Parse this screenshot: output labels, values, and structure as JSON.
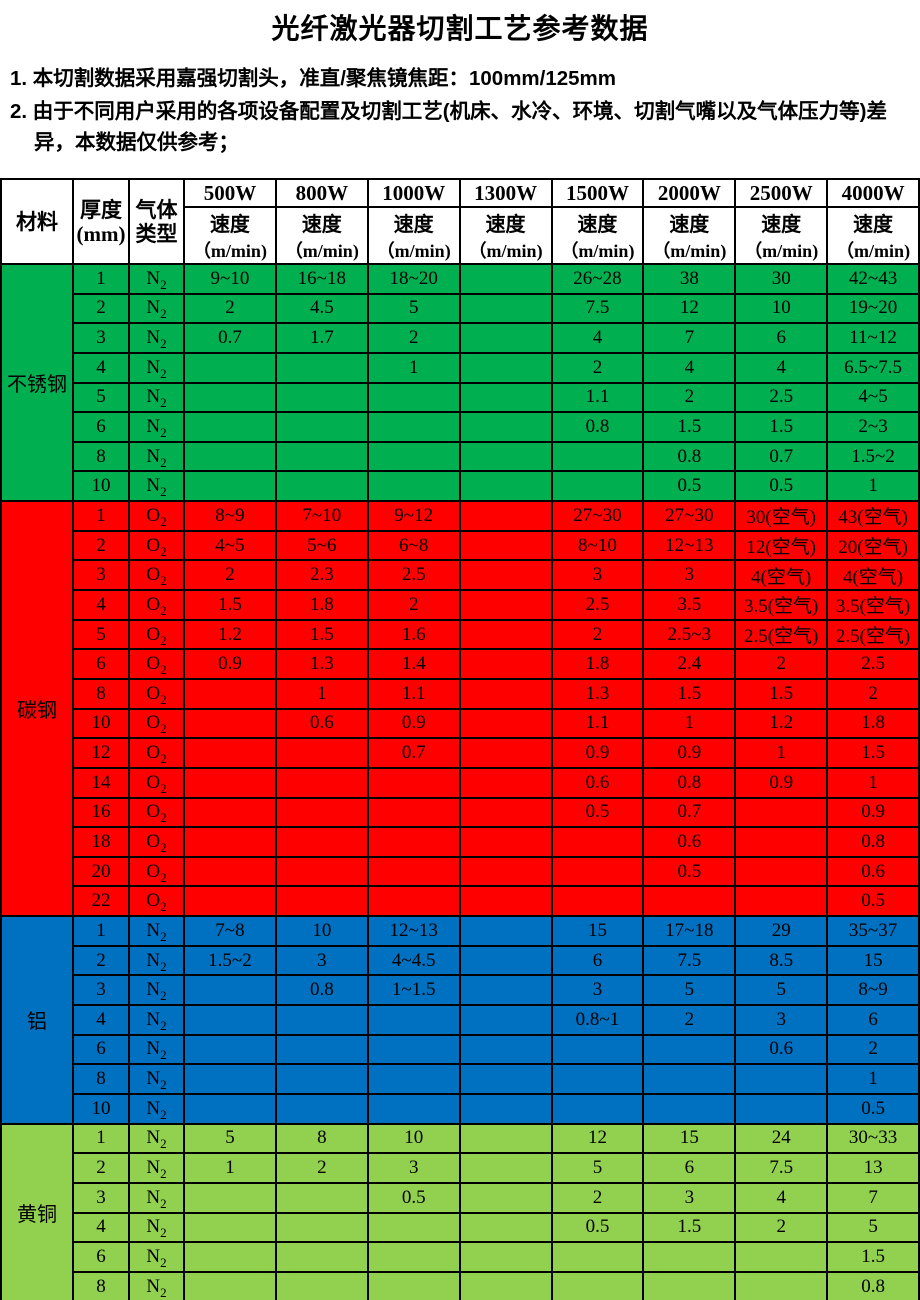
{
  "title": "光纤激光器切割工艺参考数据",
  "notes": [
    "1. 本切割数据采用嘉强切割头，准直/聚焦镜焦距：100mm/125mm",
    "2. 由于不同用户采用的各项设备配置及切割工艺(机床、水冷、环境、切割气嘴以及气体压力等)差异，本数据仅供参考；"
  ],
  "table": {
    "header": {
      "material": "材料",
      "thickness_line1": "厚度",
      "thickness_line2": "(mm)",
      "gas_line1": "气体",
      "gas_line2": "类型",
      "powers": [
        "500W",
        "800W",
        "1000W",
        "1300W",
        "1500W",
        "2000W",
        "2500W",
        "4000W"
      ],
      "speed_label": "速度",
      "speed_unit": "（m/min)"
    },
    "colors": {
      "header_bg": "#FFFFFF",
      "border": "#000000"
    },
    "sections": [
      {
        "material": "不锈钢",
        "color": "#00B050",
        "gas": "N2",
        "rows": [
          {
            "thickness": "1",
            "speeds": [
              "9~10",
              "16~18",
              "18~20",
              "",
              "26~28",
              "38",
              "30",
              "42~43"
            ]
          },
          {
            "thickness": "2",
            "speeds": [
              "2",
              "4.5",
              "5",
              "",
              "7.5",
              "12",
              "10",
              "19~20"
            ]
          },
          {
            "thickness": "3",
            "speeds": [
              "0.7",
              "1.7",
              "2",
              "",
              "4",
              "7",
              "6",
              "11~12"
            ]
          },
          {
            "thickness": "4",
            "speeds": [
              "",
              "",
              "1",
              "",
              "2",
              "4",
              "4",
              "6.5~7.5"
            ]
          },
          {
            "thickness": "5",
            "speeds": [
              "",
              "",
              "",
              "",
              "1.1",
              "2",
              "2.5",
              "4~5"
            ]
          },
          {
            "thickness": "6",
            "speeds": [
              "",
              "",
              "",
              "",
              "0.8",
              "1.5",
              "1.5",
              "2~3"
            ]
          },
          {
            "thickness": "8",
            "speeds": [
              "",
              "",
              "",
              "",
              "",
              "0.8",
              "0.7",
              "1.5~2"
            ]
          },
          {
            "thickness": "10",
            "speeds": [
              "",
              "",
              "",
              "",
              "",
              "0.5",
              "0.5",
              "1"
            ]
          }
        ]
      },
      {
        "material": "碳钢",
        "color": "#FF0000",
        "gas": "O2",
        "rows": [
          {
            "thickness": "1",
            "speeds": [
              "8~9",
              "7~10",
              "9~12",
              "",
              "27~30",
              "27~30",
              "30(空气)",
              "43(空气)"
            ]
          },
          {
            "thickness": "2",
            "speeds": [
              "4~5",
              "5~6",
              "6~8",
              "",
              "8~10",
              "12~13",
              "12(空气)",
              "20(空气)"
            ]
          },
          {
            "thickness": "3",
            "speeds": [
              "2",
              "2.3",
              "2.5",
              "",
              "3",
              "3",
              "4(空气)",
              "4(空气)"
            ]
          },
          {
            "thickness": "4",
            "speeds": [
              "1.5",
              "1.8",
              "2",
              "",
              "2.5",
              "3.5",
              "3.5(空气)",
              "3.5(空气)"
            ]
          },
          {
            "thickness": "5",
            "speeds": [
              "1.2",
              "1.5",
              "1.6",
              "",
              "2",
              "2.5~3",
              "2.5(空气)",
              "2.5(空气)"
            ]
          },
          {
            "thickness": "6",
            "speeds": [
              "0.9",
              "1.3",
              "1.4",
              "",
              "1.8",
              "2.4",
              "2",
              "2.5"
            ]
          },
          {
            "thickness": "8",
            "speeds": [
              "",
              "1",
              "1.1",
              "",
              "1.3",
              "1.5",
              "1.5",
              "2"
            ]
          },
          {
            "thickness": "10",
            "speeds": [
              "",
              "0.6",
              "0.9",
              "",
              "1.1",
              "1",
              "1.2",
              "1.8"
            ]
          },
          {
            "thickness": "12",
            "speeds": [
              "",
              "",
              "0.7",
              "",
              "0.9",
              "0.9",
              "1",
              "1.5"
            ]
          },
          {
            "thickness": "14",
            "speeds": [
              "",
              "",
              "",
              "",
              "0.6",
              "0.8",
              "0.9",
              "1"
            ]
          },
          {
            "thickness": "16",
            "speeds": [
              "",
              "",
              "",
              "",
              "0.5",
              "0.7",
              "",
              "0.9"
            ]
          },
          {
            "thickness": "18",
            "speeds": [
              "",
              "",
              "",
              "",
              "",
              "0.6",
              "",
              "0.8"
            ]
          },
          {
            "thickness": "20",
            "speeds": [
              "",
              "",
              "",
              "",
              "",
              "0.5",
              "",
              "0.6"
            ]
          },
          {
            "thickness": "22",
            "speeds": [
              "",
              "",
              "",
              "",
              "",
              "",
              "",
              "0.5"
            ]
          }
        ]
      },
      {
        "material": "铝",
        "color": "#0070C0",
        "gas": "N2",
        "rows": [
          {
            "thickness": "1",
            "speeds": [
              "7~8",
              "10",
              "12~13",
              "",
              "15",
              "17~18",
              "29",
              "35~37"
            ]
          },
          {
            "thickness": "2",
            "speeds": [
              "1.5~2",
              "3",
              "4~4.5",
              "",
              "6",
              "7.5",
              "8.5",
              "15"
            ]
          },
          {
            "thickness": "3",
            "speeds": [
              "",
              "0.8",
              "1~1.5",
              "",
              "3",
              "5",
              "5",
              "8~9"
            ]
          },
          {
            "thickness": "4",
            "speeds": [
              "",
              "",
              "",
              "",
              "0.8~1",
              "2",
              "3",
              "6"
            ]
          },
          {
            "thickness": "6",
            "speeds": [
              "",
              "",
              "",
              "",
              "",
              "",
              "0.6",
              "2"
            ]
          },
          {
            "thickness": "8",
            "speeds": [
              "",
              "",
              "",
              "",
              "",
              "",
              "",
              "1"
            ]
          },
          {
            "thickness": "10",
            "speeds": [
              "",
              "",
              "",
              "",
              "",
              "",
              "",
              "0.5"
            ]
          }
        ]
      },
      {
        "material": "黄铜",
        "color": "#92D050",
        "gas": "N2",
        "rows": [
          {
            "thickness": "1",
            "speeds": [
              "5",
              "8",
              "10",
              "",
              "12",
              "15",
              "24",
              "30~33"
            ]
          },
          {
            "thickness": "2",
            "speeds": [
              "1",
              "2",
              "3",
              "",
              "5",
              "6",
              "7.5",
              "13"
            ]
          },
          {
            "thickness": "3",
            "speeds": [
              "",
              "",
              "0.5",
              "",
              "2",
              "3",
              "4",
              "7"
            ]
          },
          {
            "thickness": "4",
            "speeds": [
              "",
              "",
              "",
              "",
              "0.5",
              "1.5",
              "2",
              "5"
            ]
          },
          {
            "thickness": "6",
            "speeds": [
              "",
              "",
              "",
              "",
              "",
              "",
              "",
              "1.5"
            ]
          },
          {
            "thickness": "8",
            "speeds": [
              "",
              "",
              "",
              "",
              "",
              "",
              "",
              "0.8"
            ]
          }
        ]
      }
    ]
  }
}
